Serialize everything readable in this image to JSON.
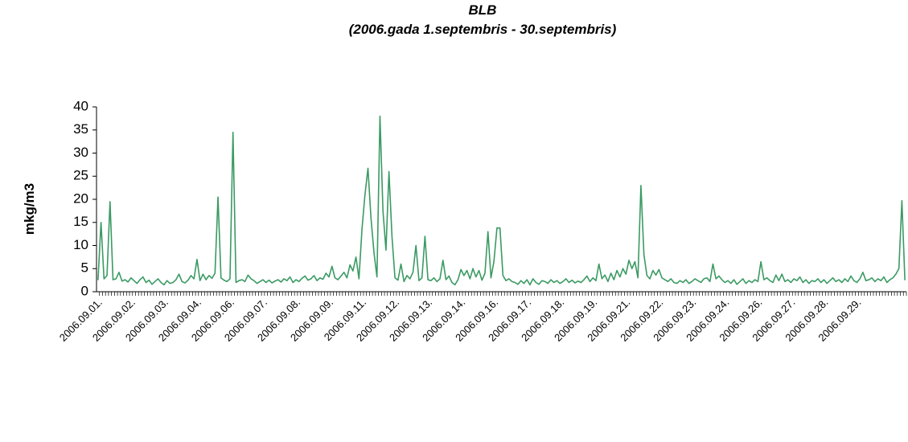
{
  "chart_data": {
    "type": "line",
    "title": "BLB",
    "subtitle": "(2006.gada 1.septembris - 30.septembris)",
    "y_label": "mkg/m3",
    "ylim": [
      0,
      40
    ],
    "yticks": [
      0,
      5,
      10,
      15,
      20,
      25,
      30,
      35,
      40
    ],
    "grid": false,
    "categories": [
      "2006.09.01.",
      null,
      null,
      null,
      null,
      null,
      null,
      null,
      null,
      null,
      null,
      "2006.09.02.",
      null,
      null,
      null,
      null,
      null,
      null,
      null,
      null,
      null,
      null,
      "2006.09.03.",
      null,
      null,
      null,
      null,
      null,
      null,
      null,
      null,
      null,
      null,
      "2006.09.04.",
      null,
      null,
      null,
      null,
      null,
      null,
      null,
      null,
      null,
      null,
      "2006.09.06.",
      null,
      null,
      null,
      null,
      null,
      null,
      null,
      null,
      null,
      null,
      "2006.09.07.",
      null,
      null,
      null,
      null,
      null,
      null,
      null,
      null,
      null,
      null,
      "2006.09.08.",
      null,
      null,
      null,
      null,
      null,
      null,
      null,
      null,
      null,
      null,
      "2006.09.09.",
      null,
      null,
      null,
      null,
      null,
      null,
      null,
      null,
      null,
      null,
      "2006.09.11.",
      null,
      null,
      null,
      null,
      null,
      null,
      null,
      null,
      null,
      null,
      "2006.09.12.",
      null,
      null,
      null,
      null,
      null,
      null,
      null,
      null,
      null,
      null,
      "2006.09.13.",
      null,
      null,
      null,
      null,
      null,
      null,
      null,
      null,
      null,
      null,
      "2006.09.14.",
      null,
      null,
      null,
      null,
      null,
      null,
      null,
      null,
      null,
      null,
      "2006.09.16.",
      null,
      null,
      null,
      null,
      null,
      null,
      null,
      null,
      null,
      null,
      "2006.09.17.",
      null,
      null,
      null,
      null,
      null,
      null,
      null,
      null,
      null,
      null,
      "2006.09.18.",
      null,
      null,
      null,
      null,
      null,
      null,
      null,
      null,
      null,
      null,
      "2006.09.19.",
      null,
      null,
      null,
      null,
      null,
      null,
      null,
      null,
      null,
      null,
      "2006.09.21.",
      null,
      null,
      null,
      null,
      null,
      null,
      null,
      null,
      null,
      null,
      "2006.09.22.",
      null,
      null,
      null,
      null,
      null,
      null,
      null,
      null,
      null,
      null,
      "2006.09.23.",
      null,
      null,
      null,
      null,
      null,
      null,
      null,
      null,
      null,
      null,
      "2006.09.24.",
      null,
      null,
      null,
      null,
      null,
      null,
      null,
      null,
      null,
      null,
      "2006.09.26.",
      null,
      null,
      null,
      null,
      null,
      null,
      null,
      null,
      null,
      null,
      "2006.09.27.",
      null,
      null,
      null,
      null,
      null,
      null,
      null,
      null,
      null,
      null,
      "2006.09.28.",
      null,
      null,
      null,
      null,
      null,
      null,
      null,
      null,
      null,
      null,
      "2006.09.29.",
      null,
      null,
      null,
      null,
      null,
      null,
      null,
      null,
      null,
      null,
      null,
      null,
      null,
      null,
      null,
      null
    ],
    "series": [
      {
        "name": "BLB",
        "color": "#3a9a63",
        "values": [
          2.5,
          15,
          2.8,
          3.5,
          19.5,
          2.6,
          2.8,
          4.2,
          2.3,
          2.6,
          2.1,
          3.0,
          2.4,
          1.8,
          2.6,
          3.2,
          2.0,
          2.5,
          1.6,
          2.2,
          2.8,
          2.0,
          1.5,
          2.4,
          1.8,
          2.0,
          2.6,
          3.8,
          2.2,
          1.9,
          2.5,
          3.5,
          2.8,
          7.0,
          2.4,
          3.8,
          2.6,
          3.5,
          2.9,
          4.0,
          20.5,
          3.0,
          2.5,
          2.2,
          2.8,
          34.5,
          2.0,
          2.4,
          2.6,
          2.2,
          3.6,
          2.8,
          2.4,
          1.8,
          2.2,
          2.6,
          2.0,
          2.5,
          1.9,
          2.3,
          2.6,
          2.1,
          2.8,
          2.4,
          3.2,
          2.0,
          2.6,
          2.2,
          2.9,
          3.4,
          2.5,
          2.8,
          3.5,
          2.4,
          3.0,
          2.7,
          4.0,
          3.2,
          5.5,
          3.0,
          2.6,
          3.4,
          4.2,
          3.0,
          5.8,
          4.5,
          7.5,
          2.8,
          13.5,
          21.0,
          26.7,
          16.0,
          8.5,
          3.2,
          38.0,
          17.5,
          9.0,
          26.0,
          12.0,
          3.0,
          2.5,
          6.0,
          2.2,
          3.5,
          2.8,
          4.2,
          10.0,
          2.4,
          3.0,
          12.0,
          2.6,
          2.4,
          3.0,
          2.2,
          2.8,
          6.8,
          2.6,
          3.4,
          2.0,
          1.5,
          2.6,
          4.8,
          3.5,
          4.6,
          2.8,
          5.0,
          3.2,
          4.6,
          2.5,
          4.0,
          13.0,
          3.0,
          6.6,
          13.8,
          13.8,
          3.5,
          2.4,
          2.8,
          2.2,
          2.0,
          1.6,
          2.4,
          1.8,
          2.6,
          1.5,
          2.8,
          2.0,
          1.6,
          2.4,
          2.2,
          1.8,
          2.6,
          2.0,
          2.4,
          1.8,
          2.2,
          2.8,
          2.0,
          2.5,
          1.9,
          2.3,
          2.0,
          2.6,
          3.4,
          2.2,
          3.0,
          2.4,
          6.0,
          2.8,
          3.6,
          2.2,
          4.0,
          2.6,
          4.6,
          3.2,
          5.0,
          3.8,
          6.8,
          5.0,
          6.5,
          3.0,
          23.0,
          8.0,
          3.5,
          2.8,
          4.6,
          3.6,
          4.8,
          3.0,
          2.6,
          2.2,
          2.8,
          2.0,
          1.8,
          2.4,
          2.0,
          2.6,
          1.8,
          2.2,
          2.8,
          2.4,
          2.0,
          2.8,
          3.0,
          2.2,
          6.0,
          2.8,
          3.4,
          2.6,
          2.0,
          2.4,
          1.8,
          2.6,
          1.6,
          2.2,
          2.8,
          1.8,
          2.4,
          2.0,
          2.6,
          2.2,
          6.5,
          2.6,
          3.0,
          2.4,
          2.0,
          3.6,
          2.4,
          3.8,
          2.2,
          2.6,
          2.0,
          2.8,
          2.4,
          3.2,
          2.0,
          2.6,
          1.8,
          2.4,
          2.2,
          2.8,
          2.0,
          2.6,
          1.8,
          2.4,
          3.0,
          2.2,
          2.6,
          2.0,
          2.8,
          2.2,
          3.4,
          2.4,
          2.0,
          2.8,
          4.2,
          2.4,
          2.6,
          3.0,
          2.2,
          2.8,
          2.4,
          3.2,
          2.0,
          2.6,
          3.0,
          3.8,
          5.0,
          19.7,
          2.5
        ]
      }
    ]
  }
}
